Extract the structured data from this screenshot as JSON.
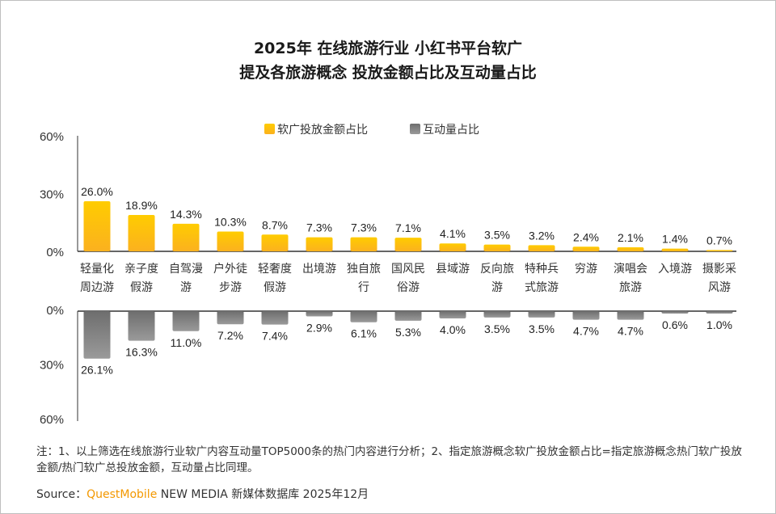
{
  "chart_data": {
    "type": "bar",
    "title_lines": [
      "2025年 在线旅游行业 小红书平台软广",
      "提及各旅游概念 投放金额占比及互动量占比"
    ],
    "categories": [
      [
        "轻量化",
        "周边游"
      ],
      [
        "亲子度",
        "假游"
      ],
      [
        "自驾漫",
        "游"
      ],
      [
        "户外徒",
        "步游"
      ],
      [
        "轻奢度",
        "假游"
      ],
      [
        "出境游"
      ],
      [
        "独自旅",
        "行"
      ],
      [
        "国风民",
        "俗游"
      ],
      [
        "县域游"
      ],
      [
        "反向旅",
        "游"
      ],
      [
        "特种兵",
        "式旅游"
      ],
      [
        "穷游"
      ],
      [
        "演唱会",
        "旅游"
      ],
      [
        "入境游"
      ],
      [
        "摄影采",
        "风游"
      ]
    ],
    "series": [
      {
        "name": "软广投放金额占比",
        "values": [
          26.0,
          18.9,
          14.3,
          10.3,
          8.7,
          7.3,
          7.3,
          7.1,
          4.1,
          3.5,
          3.2,
          2.4,
          2.1,
          1.4,
          0.7
        ],
        "labels": [
          "26.0%",
          "18.9%",
          "14.3%",
          "10.3%",
          "8.7%",
          "7.3%",
          "7.3%",
          "7.1%",
          "4.1%",
          "3.5%",
          "3.2%",
          "2.4%",
          "2.1%",
          "1.4%",
          "0.7%"
        ],
        "color": "#ffc000"
      },
      {
        "name": "互动量占比",
        "values": [
          26.1,
          16.3,
          11.0,
          7.2,
          7.4,
          2.9,
          6.1,
          5.3,
          4.0,
          3.5,
          3.5,
          4.7,
          4.7,
          0.6,
          1.0
        ],
        "labels": [
          "26.1%",
          "16.3%",
          "11.0%",
          "7.2%",
          "7.4%",
          "2.9%",
          "6.1%",
          "5.3%",
          "4.0%",
          "3.5%",
          "3.5%",
          "4.7%",
          "4.7%",
          "0.6%",
          "1.0%"
        ],
        "color": "#7f7f7f"
      }
    ],
    "top_axis": {
      "ylim": [
        0,
        60
      ],
      "ticks": [
        "0%",
        "30%",
        "60%"
      ]
    },
    "bottom_axis": {
      "ylim": [
        0,
        60
      ],
      "ticks": [
        "0%",
        "30%",
        "60%"
      ],
      "inverted": true
    },
    "legend_placement": "top-center"
  },
  "note": "注：1、以上筛选在线旅游行业软广内容互动量TOP5000条的热门内容进行分析；2、指定旅游概念软广投放金额占比=指定旅游概念热门软广投放金额/热门软广总投放金额，互动量占比同理。",
  "source": {
    "label": "Source：",
    "brand": "QuestMobile",
    "rest": " NEW MEDIA 新媒体数据库 2025年12月"
  }
}
